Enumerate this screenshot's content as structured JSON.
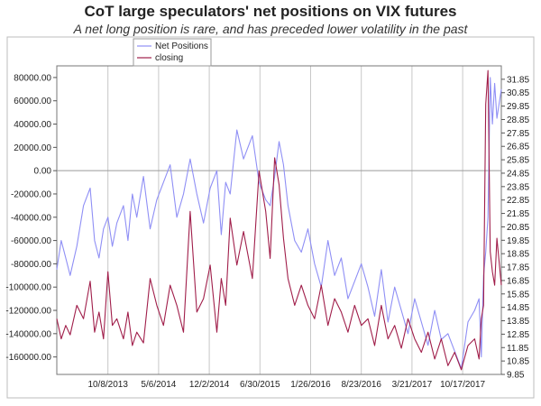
{
  "chart_data": {
    "type": "line",
    "title": "CoT large speculators' net positions on VIX futures",
    "subtitle": "A net long position is rare, and has preceded lower volatility in the past",
    "xlabel": "",
    "ylabel": "",
    "x_tick_labels": [
      "10/8/2013",
      "5/6/2014",
      "12/2/2014",
      "6/30/2015",
      "1/26/2016",
      "8/23/2016",
      "3/21/2017",
      "10/17/2017"
    ],
    "left_axis": {
      "ticks": [
        "80000.00",
        "60000.00",
        "40000.00",
        "20000.00",
        "0.00",
        "-20000.00",
        "-40000.00",
        "-60000.00",
        "-80000.00",
        "-100000.00",
        "-120000.00",
        "-140000.00",
        "-160000.00"
      ],
      "ylim": [
        -175000,
        90000
      ]
    },
    "right_axis": {
      "ticks": [
        "31.85",
        "30.85",
        "29.85",
        "28.85",
        "27.85",
        "26.85",
        "25.85",
        "24.85",
        "23.85",
        "22.85",
        "21.85",
        "20.85",
        "19.85",
        "18.85",
        "17.85",
        "16.85",
        "15.85",
        "14.85",
        "13.85",
        "12.85",
        "11.85",
        "10.85",
        "9.85"
      ],
      "ylim": [
        9.85,
        32.85
      ]
    },
    "legend": {
      "placement": "top-left"
    },
    "grid": {
      "x": true,
      "y": false
    },
    "series": [
      {
        "name": "Net Positions",
        "axis": "left",
        "color": "#8f8ff5",
        "x": [
          0.0,
          0.01,
          0.02,
          0.03,
          0.045,
          0.06,
          0.075,
          0.085,
          0.095,
          0.105,
          0.115,
          0.125,
          0.135,
          0.15,
          0.16,
          0.17,
          0.18,
          0.195,
          0.21,
          0.225,
          0.24,
          0.255,
          0.27,
          0.285,
          0.3,
          0.315,
          0.33,
          0.345,
          0.36,
          0.37,
          0.38,
          0.39,
          0.405,
          0.42,
          0.44,
          0.455,
          0.47,
          0.48,
          0.49,
          0.5,
          0.51,
          0.52,
          0.535,
          0.55,
          0.565,
          0.58,
          0.595,
          0.61,
          0.625,
          0.64,
          0.655,
          0.67,
          0.685,
          0.7,
          0.715,
          0.73,
          0.745,
          0.76,
          0.775,
          0.79,
          0.805,
          0.82,
          0.835,
          0.85,
          0.865,
          0.88,
          0.895,
          0.91,
          0.925,
          0.94,
          0.95,
          0.955,
          0.96,
          0.965,
          0.97,
          0.975,
          0.98,
          0.985,
          0.99,
          1.0
        ],
        "values": [
          -85000,
          -60000,
          -75000,
          -90000,
          -65000,
          -30000,
          -15000,
          -60000,
          -75000,
          -50000,
          -40000,
          -65000,
          -45000,
          -30000,
          -60000,
          -20000,
          -40000,
          -5000,
          -50000,
          -25000,
          -10000,
          5000,
          -40000,
          -20000,
          10000,
          -20000,
          -45000,
          -15000,
          0,
          -55000,
          -10000,
          -20000,
          35000,
          10000,
          30000,
          -10000,
          -25000,
          -30000,
          -5000,
          25000,
          5000,
          -30000,
          -60000,
          -70000,
          -50000,
          -80000,
          -100000,
          -60000,
          -90000,
          -75000,
          -110000,
          -95000,
          -80000,
          -100000,
          -125000,
          -85000,
          -130000,
          -100000,
          -120000,
          -140000,
          -110000,
          -130000,
          -150000,
          -120000,
          -145000,
          -140000,
          -155000,
          -170000,
          -130000,
          -120000,
          -110000,
          -160000,
          -90000,
          -70000,
          -40000,
          80000,
          40000,
          75000,
          45000,
          70000
        ]
      },
      {
        "name": "closing",
        "axis": "right",
        "color": "#a01e4a",
        "x": [
          0.0,
          0.01,
          0.02,
          0.03,
          0.045,
          0.06,
          0.075,
          0.085,
          0.095,
          0.105,
          0.115,
          0.125,
          0.135,
          0.15,
          0.16,
          0.17,
          0.18,
          0.195,
          0.21,
          0.225,
          0.24,
          0.255,
          0.27,
          0.285,
          0.3,
          0.315,
          0.33,
          0.345,
          0.36,
          0.37,
          0.38,
          0.39,
          0.405,
          0.42,
          0.44,
          0.455,
          0.47,
          0.48,
          0.49,
          0.5,
          0.51,
          0.52,
          0.535,
          0.55,
          0.565,
          0.58,
          0.595,
          0.61,
          0.625,
          0.64,
          0.655,
          0.67,
          0.685,
          0.7,
          0.715,
          0.73,
          0.745,
          0.76,
          0.775,
          0.79,
          0.805,
          0.82,
          0.835,
          0.85,
          0.865,
          0.88,
          0.895,
          0.91,
          0.925,
          0.94,
          0.95,
          0.955,
          0.96,
          0.965,
          0.97,
          0.975,
          0.98,
          0.985,
          0.99,
          1.0
        ],
        "values": [
          14.0,
          12.5,
          13.5,
          12.8,
          15.0,
          14.0,
          16.8,
          13.0,
          14.5,
          12.5,
          17.5,
          13.5,
          14.0,
          12.5,
          14.5,
          12.0,
          13.0,
          12.2,
          17.0,
          15.0,
          13.5,
          16.5,
          15.0,
          13.0,
          22.0,
          14.5,
          15.5,
          18.0,
          13.0,
          17.0,
          15.0,
          21.5,
          18.0,
          20.5,
          17.0,
          25.0,
          22.0,
          18.5,
          26.0,
          24.0,
          20.0,
          17.0,
          15.0,
          16.5,
          15.0,
          14.0,
          16.5,
          13.5,
          15.5,
          14.5,
          13.0,
          15.0,
          13.5,
          14.0,
          12.0,
          15.0,
          12.5,
          13.5,
          11.8,
          14.0,
          12.5,
          11.5,
          13.0,
          11.0,
          12.5,
          10.5,
          11.5,
          10.2,
          12.0,
          12.5,
          11.0,
          14.0,
          15.0,
          30.0,
          32.5,
          19.0,
          17.5,
          16.5,
          20.0,
          16.5
        ]
      }
    ]
  }
}
